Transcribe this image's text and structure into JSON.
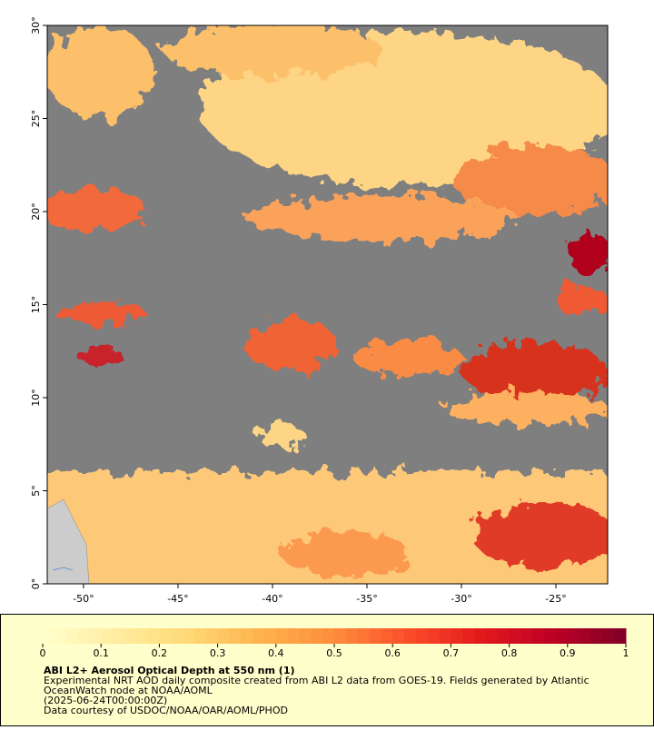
{
  "map": {
    "xlim": [
      -51.92,
      -22.26
    ],
    "ylim": [
      0,
      30
    ],
    "xticks": [
      {
        "value": -50,
        "label": "-50°"
      },
      {
        "value": -45,
        "label": "-45°"
      },
      {
        "value": -40,
        "label": "-40°"
      },
      {
        "value": -35,
        "label": "-35°"
      },
      {
        "value": -30,
        "label": "-30°"
      },
      {
        "value": -25,
        "label": "-25°"
      }
    ],
    "yticks": [
      {
        "value": 0,
        "label": "0°"
      },
      {
        "value": 5,
        "label": "5°"
      },
      {
        "value": 10,
        "label": "10°"
      },
      {
        "value": 15,
        "label": "15°"
      },
      {
        "value": 20,
        "label": "20°"
      },
      {
        "value": 25,
        "label": "25°"
      },
      {
        "value": 30,
        "label": "30°"
      }
    ]
  },
  "colorbar": {
    "range": [
      0,
      1
    ],
    "ticks": [
      0,
      0.1,
      0.2,
      0.3,
      0.4,
      0.5,
      0.6,
      0.7,
      0.8,
      0.9,
      1
    ],
    "colors": [
      "#ffffcc",
      "#ffeda0",
      "#fed976",
      "#feb24c",
      "#fd8d3c",
      "#fc4e2a",
      "#e31a1c",
      "#bd0026",
      "#800026"
    ]
  },
  "legend": {
    "title": "ABI L2+ Aerosol Optical Depth at 550 nm (1)",
    "lines": [
      "Experimental NRT AOD daily composite created from ABI L2 data from GOES-19. Fields generated by Atlantic",
      "OceanWatch node at NOAA/AOML",
      "(2025-06-24T00:00:00Z)",
      "Data courtesy of USDOC/NOAA/OAR/AOML/PHOD"
    ]
  }
}
